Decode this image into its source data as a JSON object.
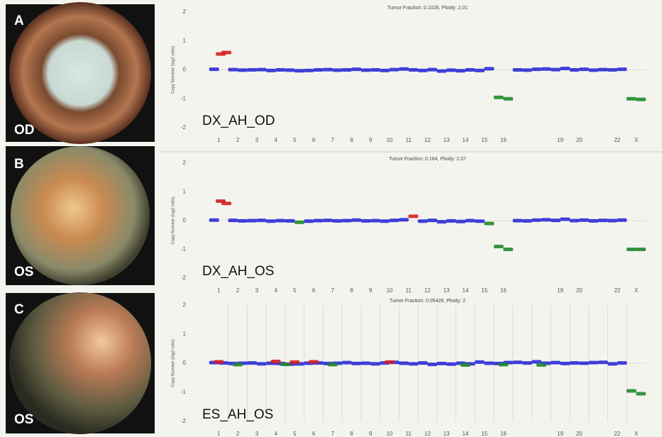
{
  "panels": [
    {
      "letter": "A",
      "eye": "OD"
    },
    {
      "letter": "B",
      "eye": "OS"
    },
    {
      "letter": "C",
      "eye": "OS"
    }
  ],
  "chart_data": [
    {
      "type": "scatter",
      "title": "Tumor Fraction: 0.1026, Ploidy: 2.01",
      "annotation": "DX_AH_OD",
      "y_label": "Copy Number (log2 ratio)",
      "xlim": [
        0,
        23
      ],
      "ylim": [
        -2,
        2
      ],
      "yticks": [
        -2,
        -1,
        0,
        1,
        2
      ],
      "hline": 0,
      "xticks": [
        {
          "value": 0.5,
          "label": "1"
        },
        {
          "value": 1.5,
          "label": "2"
        },
        {
          "value": 2.5,
          "label": "3"
        },
        {
          "value": 3.5,
          "label": "4"
        },
        {
          "value": 4.5,
          "label": "5"
        },
        {
          "value": 5.5,
          "label": "6"
        },
        {
          "value": 6.5,
          "label": "7"
        },
        {
          "value": 7.5,
          "label": "8"
        },
        {
          "value": 8.5,
          "label": "9"
        },
        {
          "value": 9.5,
          "label": "10"
        },
        {
          "value": 10.5,
          "label": "11"
        },
        {
          "value": 11.5,
          "label": "12"
        },
        {
          "value": 12.5,
          "label": "13"
        },
        {
          "value": 13.5,
          "label": "14"
        },
        {
          "value": 14.5,
          "label": "15"
        },
        {
          "value": 15.5,
          "label": "16"
        },
        {
          "value": 18.5,
          "label": "19"
        },
        {
          "value": 19.5,
          "label": "20"
        },
        {
          "value": 21.5,
          "label": "22"
        },
        {
          "value": 22.5,
          "label": "X"
        }
      ],
      "series": [
        {
          "color": "#2b2bd6",
          "x": [
            0.25,
            1.25,
            1.75,
            2.25,
            2.75,
            3.25,
            3.75,
            4.25,
            4.75,
            5.25,
            5.75,
            6.25,
            6.75,
            7.25,
            7.75,
            8.25,
            8.75,
            9.25,
            9.75,
            10.25,
            10.75,
            11.25,
            11.75,
            12.25,
            12.75,
            13.25,
            13.75,
            14.25,
            14.75,
            16.25,
            16.75,
            17.25,
            17.75,
            18.25,
            18.75,
            19.25,
            19.75,
            20.25,
            20.75,
            21.25,
            21.75
          ],
          "values": [
            0.02,
            0.01,
            -0.01,
            0.0,
            0.01,
            -0.02,
            0.0,
            -0.01,
            -0.03,
            -0.02,
            0.0,
            0.01,
            -0.01,
            0.0,
            0.02,
            -0.01,
            0.0,
            -0.02,
            0.01,
            0.03,
            0.0,
            -0.02,
            0.01,
            -0.04,
            -0.01,
            -0.03,
            0.0,
            -0.02,
            0.04,
            0.0,
            -0.01,
            0.02,
            0.03,
            0.01,
            0.05,
            0.0,
            0.02,
            -0.01,
            0.01,
            0.0,
            0.02
          ]
        },
        {
          "color": "#d42020",
          "x": [
            0.6,
            0.9
          ],
          "values": [
            0.55,
            0.6
          ]
        },
        {
          "color": "#1f8a2a",
          "x": [
            15.25,
            15.75,
            22.25,
            22.75
          ],
          "values": [
            -0.95,
            -1.0,
            -1.0,
            -1.02
          ]
        }
      ]
    },
    {
      "type": "scatter",
      "title": "Tumor Fraction: 0.164, Ploidy: 2.07",
      "annotation": "DX_AH_OS",
      "y_label": "Copy Number (log2 ratio)",
      "xlim": [
        0,
        23
      ],
      "ylim": [
        -2,
        2
      ],
      "yticks": [
        -2,
        -1,
        0,
        1,
        2
      ],
      "hline": 0,
      "xticks": [
        {
          "value": 0.5,
          "label": "1"
        },
        {
          "value": 1.5,
          "label": "2"
        },
        {
          "value": 2.5,
          "label": "3"
        },
        {
          "value": 3.5,
          "label": "4"
        },
        {
          "value": 4.5,
          "label": "5"
        },
        {
          "value": 5.5,
          "label": "6"
        },
        {
          "value": 6.5,
          "label": "7"
        },
        {
          "value": 7.5,
          "label": "8"
        },
        {
          "value": 8.5,
          "label": "9"
        },
        {
          "value": 9.5,
          "label": "10"
        },
        {
          "value": 10.5,
          "label": "11"
        },
        {
          "value": 11.5,
          "label": "12"
        },
        {
          "value": 12.5,
          "label": "13"
        },
        {
          "value": 13.5,
          "label": "14"
        },
        {
          "value": 14.5,
          "label": "15"
        },
        {
          "value": 15.5,
          "label": "16"
        },
        {
          "value": 18.5,
          "label": "19"
        },
        {
          "value": 19.5,
          "label": "20"
        },
        {
          "value": 21.5,
          "label": "22"
        },
        {
          "value": 22.5,
          "label": "X"
        }
      ],
      "series": [
        {
          "color": "#2b2bd6",
          "x": [
            0.25,
            1.25,
            1.75,
            2.25,
            2.75,
            3.25,
            3.75,
            4.25,
            5.25,
            5.75,
            6.25,
            6.75,
            7.25,
            7.75,
            8.25,
            8.75,
            9.25,
            9.75,
            10.25,
            11.25,
            11.75,
            12.25,
            12.75,
            13.25,
            13.75,
            14.25,
            16.25,
            16.75,
            17.25,
            17.75,
            18.25,
            18.75,
            19.25,
            19.75,
            20.25,
            20.75,
            21.25,
            21.75
          ],
          "values": [
            0.02,
            0.01,
            -0.01,
            0.0,
            0.01,
            -0.02,
            0.0,
            -0.01,
            -0.02,
            0.0,
            0.01,
            -0.01,
            0.0,
            0.02,
            -0.01,
            0.0,
            -0.02,
            0.01,
            0.03,
            -0.02,
            0.01,
            -0.04,
            -0.01,
            -0.03,
            0.0,
            -0.02,
            0.0,
            -0.01,
            0.02,
            0.03,
            0.01,
            0.05,
            0.0,
            0.02,
            -0.01,
            0.01,
            0.0,
            0.02
          ]
        },
        {
          "color": "#d42020",
          "x": [
            0.6,
            0.9,
            10.75
          ],
          "values": [
            0.68,
            0.6,
            0.15
          ]
        },
        {
          "color": "#1f8a2a",
          "x": [
            4.75,
            14.75,
            15.25,
            15.75,
            22.25,
            22.75
          ],
          "values": [
            -0.06,
            -0.1,
            -0.9,
            -1.0,
            -1.0,
            -1.0
          ]
        }
      ]
    },
    {
      "type": "scatter",
      "title": "Tumor Fraction: 0.05426, Ploidy: 2",
      "annotation": "ES_AH_OS",
      "y_label": "Copy Number (log2 ratio)",
      "xlim": [
        0,
        23
      ],
      "ylim": [
        -2,
        2
      ],
      "yticks": [
        -2,
        -1,
        0,
        1,
        2
      ],
      "hline": 0,
      "boundaries": [
        1,
        2,
        3,
        4,
        5,
        6,
        7,
        8,
        9,
        10,
        11,
        12,
        13,
        14,
        15,
        16,
        17,
        18,
        19,
        20,
        21,
        22
      ],
      "xticks": [
        {
          "value": 0.5,
          "label": "1"
        },
        {
          "value": 1.5,
          "label": "2"
        },
        {
          "value": 2.5,
          "label": "3"
        },
        {
          "value": 3.5,
          "label": "4"
        },
        {
          "value": 4.5,
          "label": "5"
        },
        {
          "value": 5.5,
          "label": "6"
        },
        {
          "value": 6.5,
          "label": "7"
        },
        {
          "value": 7.5,
          "label": "8"
        },
        {
          "value": 8.5,
          "label": "9"
        },
        {
          "value": 9.5,
          "label": "10"
        },
        {
          "value": 10.5,
          "label": "11"
        },
        {
          "value": 11.5,
          "label": "12"
        },
        {
          "value": 12.5,
          "label": "13"
        },
        {
          "value": 13.5,
          "label": "14"
        },
        {
          "value": 14.5,
          "label": "15"
        },
        {
          "value": 15.5,
          "label": "16"
        },
        {
          "value": 18.5,
          "label": "19"
        },
        {
          "value": 19.5,
          "label": "20"
        },
        {
          "value": 21.5,
          "label": "22"
        },
        {
          "value": 22.5,
          "label": "X"
        }
      ],
      "series": [
        {
          "color": "#2b2bd6",
          "x": [
            0.25,
            0.75,
            1.25,
            1.75,
            2.25,
            2.75,
            3.25,
            3.75,
            4.25,
            4.75,
            5.25,
            5.75,
            6.25,
            6.75,
            7.25,
            7.75,
            8.25,
            8.75,
            9.25,
            9.75,
            10.25,
            10.75,
            11.25,
            11.75,
            12.25,
            12.75,
            13.25,
            13.75,
            14.25,
            14.75,
            15.25,
            15.75,
            16.25,
            16.75,
            17.25,
            17.75,
            18.25,
            18.75,
            19.25,
            19.75,
            20.25,
            20.75,
            21.25,
            21.75
          ],
          "values": [
            0.02,
            0.01,
            -0.01,
            0.0,
            0.01,
            -0.02,
            0.0,
            -0.01,
            -0.03,
            -0.02,
            0.0,
            0.01,
            -0.01,
            0.0,
            0.02,
            -0.01,
            0.0,
            -0.02,
            0.01,
            0.03,
            0.0,
            -0.02,
            0.01,
            -0.04,
            -0.01,
            -0.03,
            0.0,
            -0.02,
            0.04,
            0.0,
            -0.01,
            0.02,
            0.03,
            0.01,
            0.05,
            0.0,
            0.02,
            -0.01,
            0.01,
            0.0,
            0.02,
            0.03,
            -0.02,
            0.01
          ]
        },
        {
          "color": "#d42020",
          "x": [
            0.5,
            3.5,
            4.5,
            5.5,
            9.5
          ],
          "values": [
            0.05,
            0.06,
            0.04,
            0.05,
            0.04
          ]
        },
        {
          "color": "#1f8a2a",
          "x": [
            1.5,
            4.0,
            6.5,
            13.5,
            15.5,
            17.5,
            22.25,
            22.75
          ],
          "values": [
            -0.05,
            -0.04,
            -0.05,
            -0.06,
            -0.05,
            -0.06,
            -0.95,
            -1.05
          ]
        }
      ]
    }
  ]
}
